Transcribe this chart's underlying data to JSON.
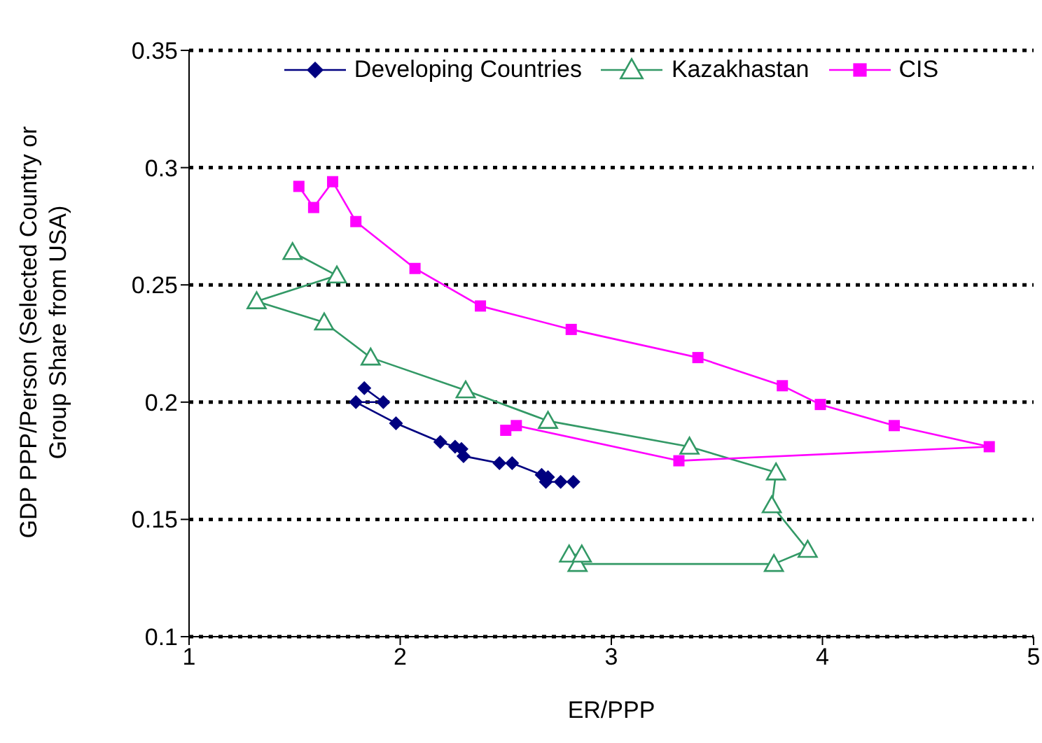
{
  "chart_data": {
    "type": "line",
    "xlabel": "ER/PPP",
    "ylabel": "GDP PPP/Person (Selected Country or Group Share from USA)",
    "xlim": [
      1,
      5
    ],
    "xticks": [
      1,
      2,
      3,
      4,
      5
    ],
    "ylim": [
      0.1,
      0.35
    ],
    "yticks": [
      0.1,
      0.15,
      0.2,
      0.25,
      0.3,
      0.35
    ],
    "grid": "y",
    "legend": "top",
    "series": [
      {
        "name": "Developing Countries",
        "color": "#000080",
        "marker": "diamond",
        "x": [
          1.83,
          1.92,
          1.79,
          1.98,
          2.19,
          2.26,
          2.29,
          2.3,
          2.47,
          2.53,
          2.67,
          2.7,
          2.69,
          2.76,
          2.82
        ],
        "values": [
          0.206,
          0.2,
          0.2,
          0.191,
          0.183,
          0.181,
          0.18,
          0.177,
          0.174,
          0.174,
          0.169,
          0.168,
          0.166,
          0.166,
          0.166
        ]
      },
      {
        "name": "Kazakhastan",
        "color": "#339966",
        "marker": "triangle",
        "x": [
          1.49,
          1.7,
          1.32,
          1.64,
          1.86,
          2.31,
          2.7,
          3.37,
          3.78,
          3.76,
          3.93,
          3.77,
          2.84,
          2.8,
          2.86
        ],
        "values": [
          0.264,
          0.254,
          0.243,
          0.234,
          0.219,
          0.205,
          0.192,
          0.181,
          0.17,
          0.156,
          0.137,
          0.131,
          0.131,
          0.135,
          0.135
        ]
      },
      {
        "name": "CIS",
        "color": "#ff00ff",
        "marker": "square",
        "x": [
          1.52,
          1.59,
          1.68,
          1.79,
          2.07,
          2.38,
          2.81,
          3.41,
          3.81,
          3.99,
          4.34,
          4.79,
          3.32,
          2.55,
          2.5
        ],
        "values": [
          0.292,
          0.283,
          0.294,
          0.277,
          0.257,
          0.241,
          0.231,
          0.219,
          0.207,
          0.199,
          0.19,
          0.181,
          0.175,
          0.19,
          0.188
        ]
      }
    ]
  }
}
